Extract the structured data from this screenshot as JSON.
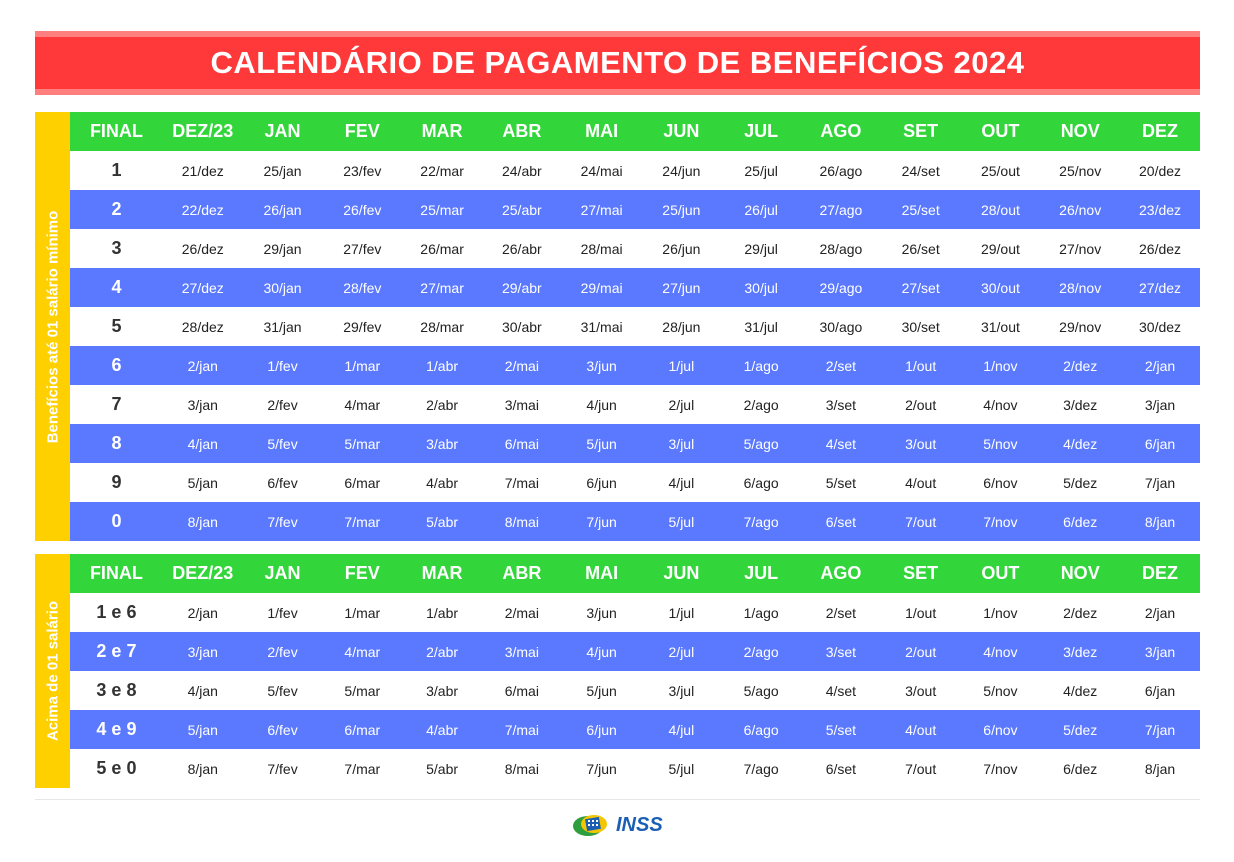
{
  "title": "CALENDÁRIO DE PAGAMENTO DE BENEFÍCIOS 2024",
  "headers": [
    "FINAL",
    "DEZ/23",
    "JAN",
    "FEV",
    "MAR",
    "ABR",
    "MAI",
    "JUN",
    "JUL",
    "AGO",
    "SET",
    "OUT",
    "NOV",
    "DEZ"
  ],
  "section1": {
    "side_label": "Benefícios até 01 salário mínimo",
    "rows": [
      [
        "1",
        "21/dez",
        "25/jan",
        "23/fev",
        "22/mar",
        "24/abr",
        "24/mai",
        "24/jun",
        "25/jul",
        "26/ago",
        "24/set",
        "25/out",
        "25/nov",
        "20/dez"
      ],
      [
        "2",
        "22/dez",
        "26/jan",
        "26/fev",
        "25/mar",
        "25/abr",
        "27/mai",
        "25/jun",
        "26/jul",
        "27/ago",
        "25/set",
        "28/out",
        "26/nov",
        "23/dez"
      ],
      [
        "3",
        "26/dez",
        "29/jan",
        "27/fev",
        "26/mar",
        "26/abr",
        "28/mai",
        "26/jun",
        "29/jul",
        "28/ago",
        "26/set",
        "29/out",
        "27/nov",
        "26/dez"
      ],
      [
        "4",
        "27/dez",
        "30/jan",
        "28/fev",
        "27/mar",
        "29/abr",
        "29/mai",
        "27/jun",
        "30/jul",
        "29/ago",
        "27/set",
        "30/out",
        "28/nov",
        "27/dez"
      ],
      [
        "5",
        "28/dez",
        "31/jan",
        "29/fev",
        "28/mar",
        "30/abr",
        "31/mai",
        "28/jun",
        "31/jul",
        "30/ago",
        "30/set",
        "31/out",
        "29/nov",
        "30/dez"
      ],
      [
        "6",
        "2/jan",
        "1/fev",
        "1/mar",
        "1/abr",
        "2/mai",
        "3/jun",
        "1/jul",
        "1/ago",
        "2/set",
        "1/out",
        "1/nov",
        "2/dez",
        "2/jan"
      ],
      [
        "7",
        "3/jan",
        "2/fev",
        "4/mar",
        "2/abr",
        "3/mai",
        "4/jun",
        "2/jul",
        "2/ago",
        "3/set",
        "2/out",
        "4/nov",
        "3/dez",
        "3/jan"
      ],
      [
        "8",
        "4/jan",
        "5/fev",
        "5/mar",
        "3/abr",
        "6/mai",
        "5/jun",
        "3/jul",
        "5/ago",
        "4/set",
        "3/out",
        "5/nov",
        "4/dez",
        "6/jan"
      ],
      [
        "9",
        "5/jan",
        "6/fev",
        "6/mar",
        "4/abr",
        "7/mai",
        "6/jun",
        "4/jul",
        "6/ago",
        "5/set",
        "4/out",
        "6/nov",
        "5/dez",
        "7/jan"
      ],
      [
        "0",
        "8/jan",
        "7/fev",
        "7/mar",
        "5/abr",
        "8/mai",
        "7/jun",
        "5/jul",
        "7/ago",
        "6/set",
        "7/out",
        "7/nov",
        "6/dez",
        "8/jan"
      ]
    ]
  },
  "section2": {
    "side_label": "Acima de 01 salário",
    "rows": [
      [
        "1 e 6",
        "2/jan",
        "1/fev",
        "1/mar",
        "1/abr",
        "2/mai",
        "3/jun",
        "1/jul",
        "1/ago",
        "2/set",
        "1/out",
        "1/nov",
        "2/dez",
        "2/jan"
      ],
      [
        "2 e 7",
        "3/jan",
        "2/fev",
        "4/mar",
        "2/abr",
        "3/mai",
        "4/jun",
        "2/jul",
        "2/ago",
        "3/set",
        "2/out",
        "4/nov",
        "3/dez",
        "3/jan"
      ],
      [
        "3 e 8",
        "4/jan",
        "5/fev",
        "5/mar",
        "3/abr",
        "6/mai",
        "5/jun",
        "3/jul",
        "5/ago",
        "4/set",
        "3/out",
        "5/nov",
        "4/dez",
        "6/jan"
      ],
      [
        "4 e 9",
        "5/jan",
        "6/fev",
        "6/mar",
        "4/abr",
        "7/mai",
        "6/jun",
        "4/jul",
        "6/ago",
        "5/set",
        "4/out",
        "6/nov",
        "5/dez",
        "7/jan"
      ],
      [
        "5 e 0",
        "8/jan",
        "7/fev",
        "7/mar",
        "5/abr",
        "8/mai",
        "7/jun",
        "5/jul",
        "7/ago",
        "6/set",
        "7/out",
        "7/nov",
        "6/dez",
        "8/jan"
      ]
    ]
  },
  "footer": {
    "logo_text": "INSS",
    "logo_icon": "inss-logo-icon"
  },
  "colors": {
    "title_bg": "#ff383a",
    "header_bg": "#33d63a",
    "stripe_bg": "#5b79ff",
    "side_bg": "#ffd000"
  }
}
